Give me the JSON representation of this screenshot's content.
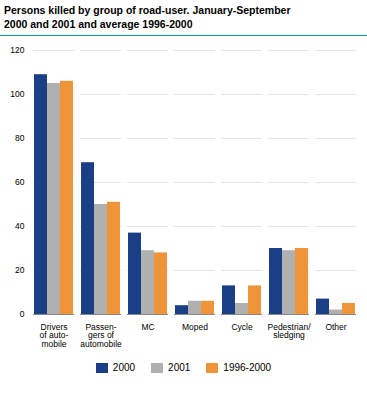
{
  "chart_data": {
    "type": "bar",
    "title": "Persons killed by group of road-user. January-September\n2000 and 2001 and average 1996-2000",
    "categories": [
      "Drivers\nof auto-\nmobile",
      "Passen-\ngers of\nautomobile",
      "MC",
      "Moped",
      "Cycle",
      "Pedestrian/\nsledging",
      "Other"
    ],
    "series": [
      {
        "name": "2000",
        "color": "#1a3f87",
        "values": [
          109,
          69,
          37,
          4,
          13,
          30,
          7
        ]
      },
      {
        "name": "2001",
        "color": "#b0b0b0",
        "values": [
          105,
          50,
          29,
          6,
          5,
          29,
          2
        ]
      },
      {
        "name": "1996-2000",
        "color": "#f0943a",
        "values": [
          106,
          51,
          28,
          6,
          13,
          30,
          5
        ]
      }
    ],
    "ylim": [
      0,
      120
    ],
    "yticks": [
      0,
      20,
      40,
      60,
      80,
      100,
      120
    ],
    "grid": true,
    "legend": "bottom"
  }
}
